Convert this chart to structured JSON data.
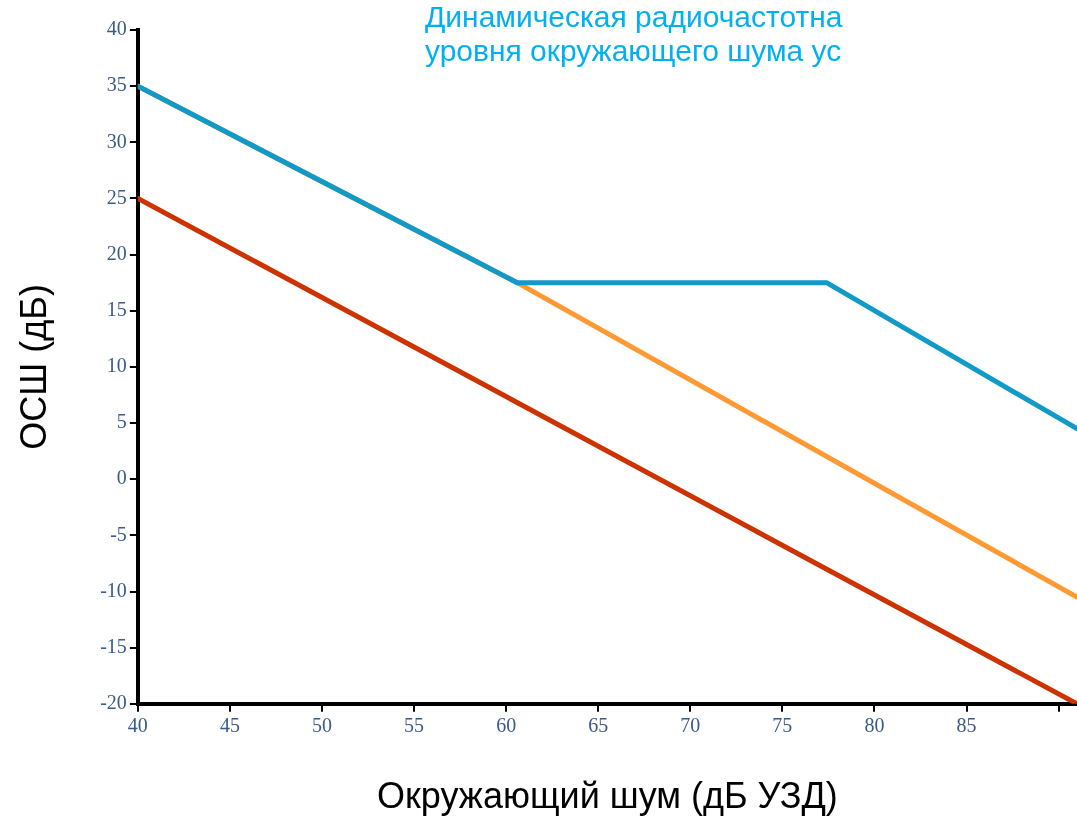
{
  "chart_data": {
    "type": "line",
    "title": "Динамическая радиочастотна\nуровня окружающего шума ус",
    "xlabel": "Окружающий шум (дБ УЗД)",
    "ylabel": "ОСШ (дБ)",
    "xlim": [
      40,
      91
    ],
    "xticks": [
      40,
      45,
      50,
      55,
      60,
      65,
      70,
      75,
      80,
      85,
      {
        "value": 90,
        "label": null
      }
    ],
    "ylim": [
      -20,
      40
    ],
    "yticks": [
      -20,
      -15,
      -10,
      -5,
      0,
      5,
      10,
      15,
      20,
      25,
      30,
      35,
      40
    ],
    "grid": false,
    "legend": false,
    "marker": "none",
    "line_style": "solid",
    "series": [
      {
        "color": "#cc3300",
        "x": [
          40,
          91
        ],
        "values": [
          25,
          -20
        ]
      },
      {
        "color": "#ff9933",
        "x": [
          40,
          60.6,
          91
        ],
        "values": [
          35,
          17.5,
          -10.5
        ]
      },
      {
        "color": "#0f9ac8",
        "x": [
          40,
          60.6,
          77.4,
          91
        ],
        "values": [
          35,
          17.5,
          17.5,
          4.5
        ]
      }
    ]
  }
}
